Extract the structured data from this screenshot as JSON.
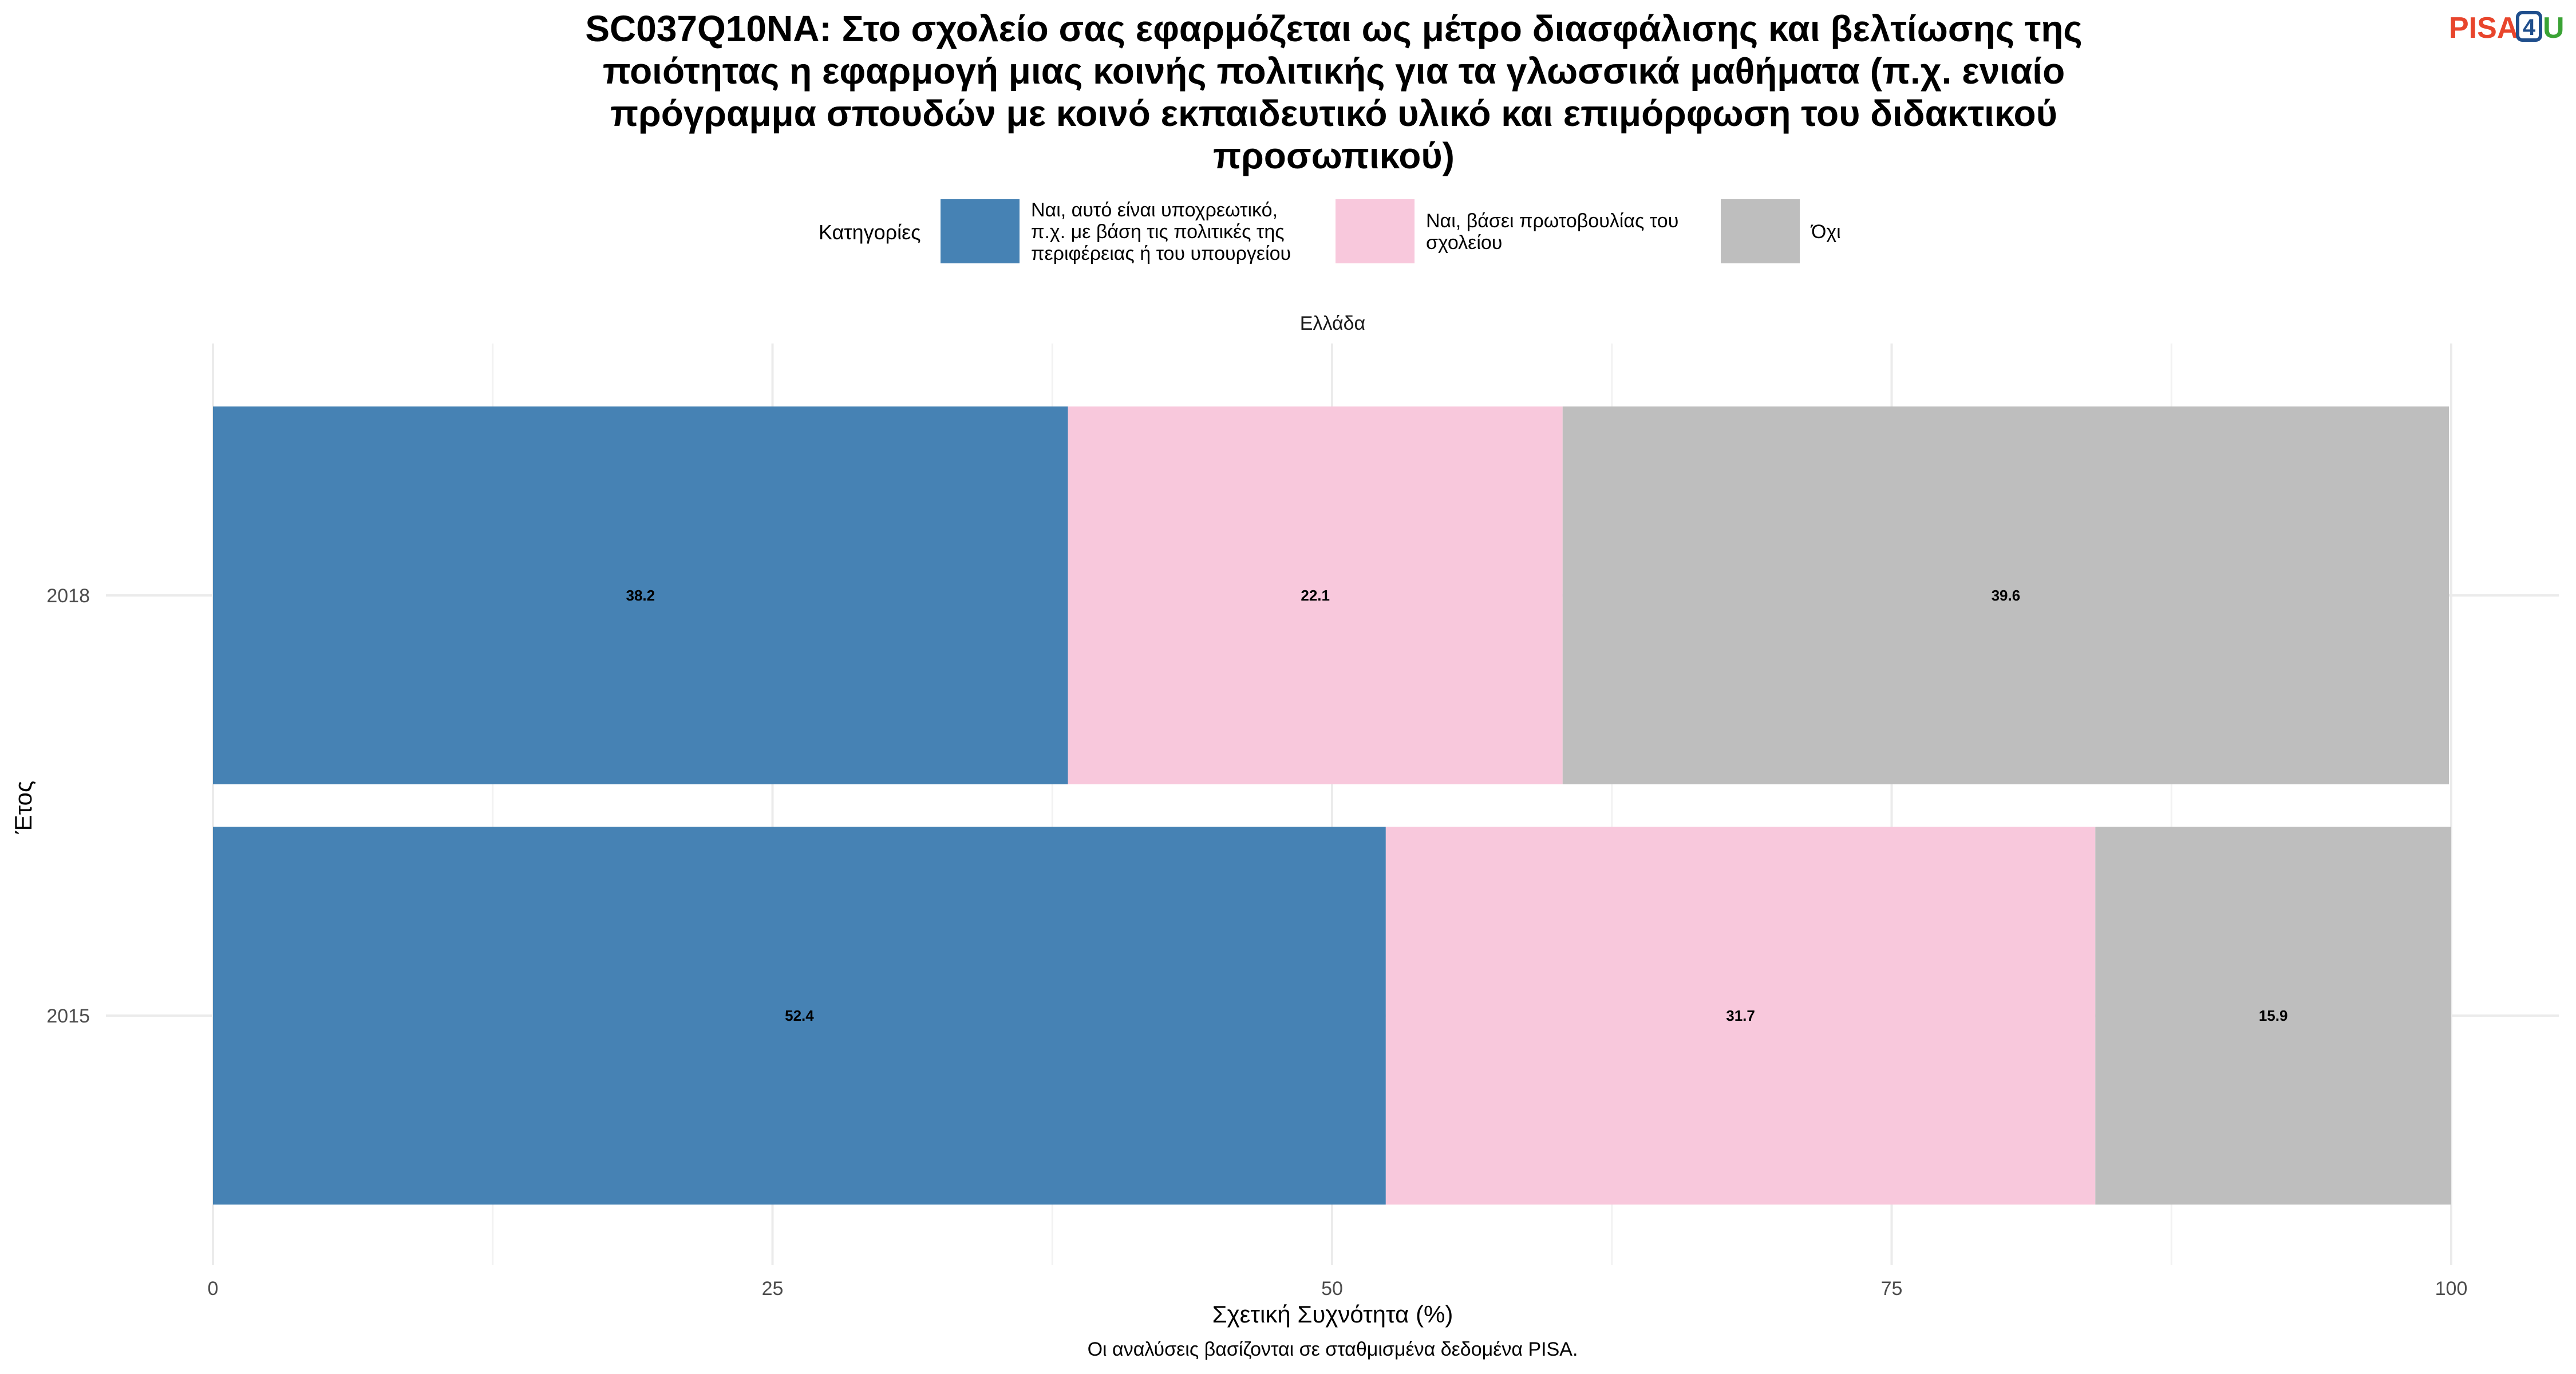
{
  "logo": {
    "pisa": "PISA",
    "four": "4",
    "u": "U"
  },
  "chart_data": {
    "type": "bar",
    "orientation": "horizontal",
    "stacked": true,
    "title_lines": [
      "SC037Q10NA: Στο σχολείο σας εφαρμόζεται ως μέτρο διασφάλισης και βελτίωσης της",
      "ποιότητας η εφαρμογή μιας κοινής πολιτικής για τα γλωσσικά μαθήματα (π.χ. ενιαίο",
      "πρόγραμμα σπουδών με κοινό εκπαιδευτικό υλικό και επιμόρφωση του διδακτικού",
      "προσωπικού)"
    ],
    "legend": {
      "title": "Κατηγορίες",
      "placement": "top",
      "items": [
        {
          "lines": [
            "Ναι, αυτό είναι υποχρεωτικό,",
            "π.χ. με βάση τις πολιτικές της",
            "περιφέρειας ή του υπουργείου"
          ],
          "color": "#4682b4"
        },
        {
          "lines": [
            "Ναι, βάσει πρωτοβουλίας του",
            "σχολείου"
          ],
          "color": "#f8c8dc"
        },
        {
          "lines": [
            "Όχι"
          ],
          "color": "#bebebe"
        }
      ]
    },
    "facet": "Ελλάδα",
    "categories": [
      "2018",
      "2015"
    ],
    "series": [
      {
        "name": "Ναι, αυτό είναι υποχρεωτικό, π.χ. με βάση τις πολιτικές της περιφέρειας ή του υπουργείου",
        "values": [
          38.2,
          52.4
        ],
        "color": "#4682b4"
      },
      {
        "name": "Ναι, βάσει πρωτοβουλίας του σχολείου",
        "values": [
          22.1,
          31.7
        ],
        "color": "#f8c8dc"
      },
      {
        "name": "Όχι",
        "values": [
          39.6,
          15.9
        ],
        "color": "#bebebe"
      }
    ],
    "xlabel": "Σχετική Συχνότητα (%)",
    "ylabel": "Έτος",
    "xlim": [
      0,
      100
    ],
    "xticks": [
      0,
      25,
      50,
      75,
      100
    ],
    "grid": true,
    "caption": "Οι αναλύσεις βασίζονται σε σταθμισμένα δεδομένα PISA."
  }
}
